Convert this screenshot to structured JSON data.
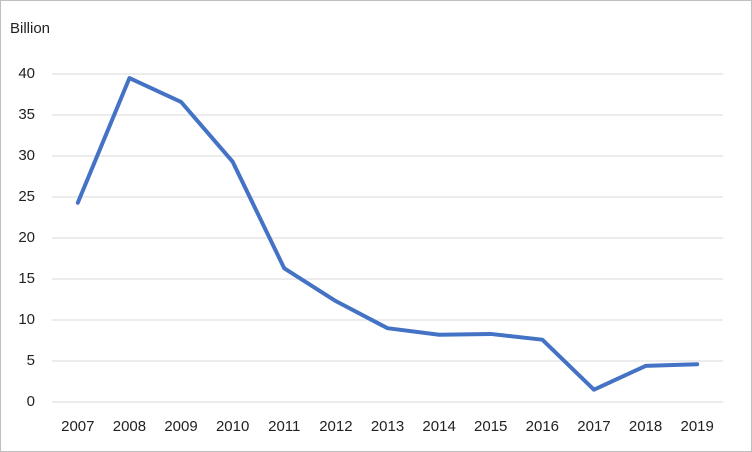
{
  "chart_data": {
    "type": "line",
    "y_axis_label": "Billion",
    "categories": [
      "2007",
      "2008",
      "2009",
      "2010",
      "2011",
      "2012",
      "2013",
      "2014",
      "2015",
      "2016",
      "2017",
      "2018",
      "2019"
    ],
    "series": [
      {
        "name": "Value",
        "color": "#4472c4",
        "values": [
          24.3,
          39.5,
          36.6,
          29.3,
          16.3,
          12.3,
          9.0,
          8.2,
          8.3,
          7.6,
          1.5,
          4.4,
          4.6
        ]
      }
    ],
    "ylim": [
      0,
      40
    ],
    "yticks": [
      0,
      5,
      10,
      15,
      20,
      25,
      30,
      35,
      40
    ],
    "grid": true,
    "legend": false
  }
}
